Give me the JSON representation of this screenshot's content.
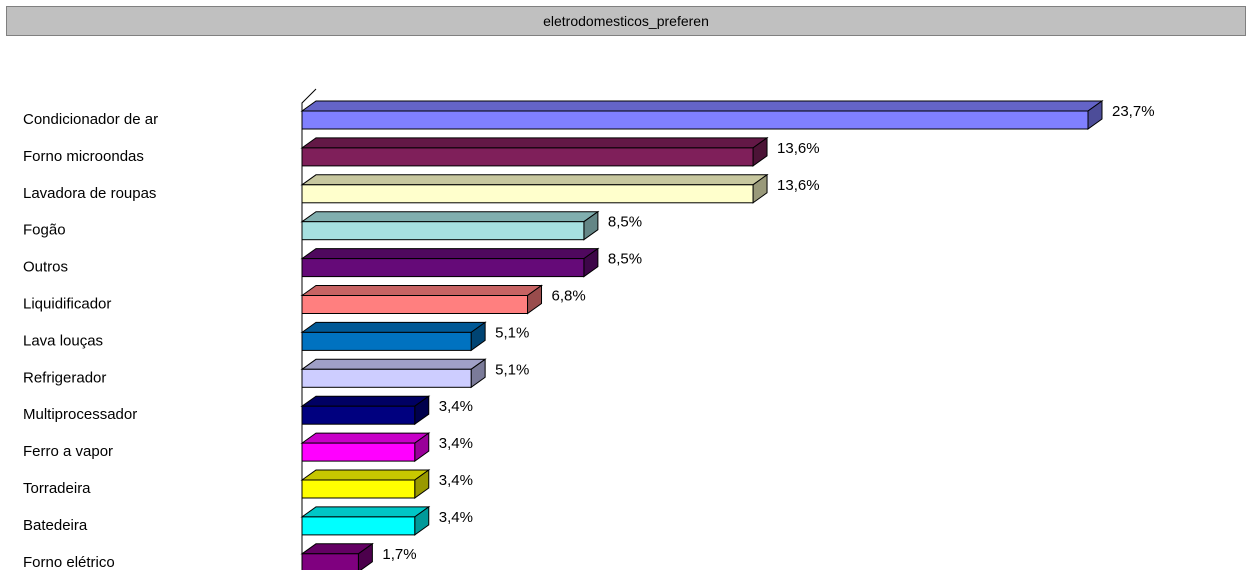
{
  "header": {
    "title": "eletrodomesticos_preferen"
  },
  "chart_data": {
    "type": "bar",
    "orientation": "horizontal",
    "style": "3d",
    "categories": [
      "Condicionador de ar",
      "Forno microondas",
      "Lavadora de roupas",
      "Fogão",
      "Outros",
      "Liquidificador",
      "Lava louças",
      "Refrigerador",
      "Multiprocessador",
      "Ferro a vapor",
      "Torradeira",
      "Batedeira",
      "Forno elétrico"
    ],
    "values": [
      23.7,
      13.6,
      13.6,
      8.5,
      8.5,
      6.8,
      5.1,
      5.1,
      3.4,
      3.4,
      3.4,
      3.4,
      1.7
    ],
    "value_labels": [
      "23,7%",
      "13,6%",
      "13,6%",
      "8,5%",
      "8,5%",
      "6,8%",
      "5,1%",
      "5,1%",
      "3,4%",
      "3,4%",
      "3,4%",
      "3,4%",
      "1,7%"
    ],
    "colors": [
      "#8080ff",
      "#7f1f5a",
      "#ffffcc",
      "#a6e0e0",
      "#650a78",
      "#ff7f7f",
      "#0072c0",
      "#cdcdff",
      "#00007f",
      "#ff00ff",
      "#ffff00",
      "#00ffff",
      "#7f007f"
    ],
    "title": "",
    "xlabel": "",
    "ylabel": "",
    "xlim": [
      0,
      23.7
    ],
    "grid": false,
    "legend": "none"
  }
}
